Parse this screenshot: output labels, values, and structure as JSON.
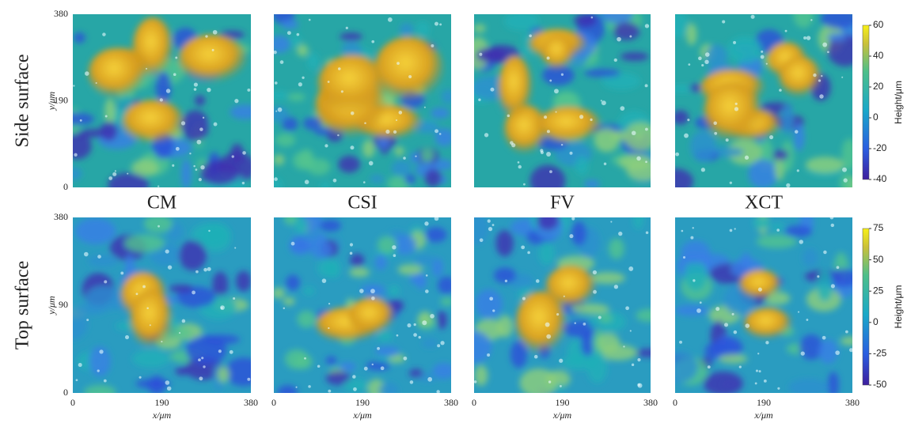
{
  "columns": [
    "CM",
    "CSI",
    "FV",
    "XCT"
  ],
  "x_axis": {
    "label": "x/μm",
    "ticks": [
      0,
      190,
      380
    ]
  },
  "rows": [
    {
      "label": "Side surface",
      "y_axis": {
        "label": "y/μm",
        "ticks": [
          380,
          190,
          0
        ]
      },
      "colorbar": {
        "label": "Height/μm",
        "lim": [
          -40,
          60
        ],
        "ticks": [
          60,
          40,
          20,
          0,
          -20,
          -40
        ]
      }
    },
    {
      "label": "Top surface",
      "y_axis": {
        "label": "y/μm",
        "ticks": [
          380,
          90,
          0
        ]
      },
      "colorbar": {
        "label": "Height/μm",
        "lim": [
          -50,
          75
        ],
        "ticks": [
          75,
          50,
          25,
          0,
          -25,
          -50
        ]
      }
    }
  ]
}
